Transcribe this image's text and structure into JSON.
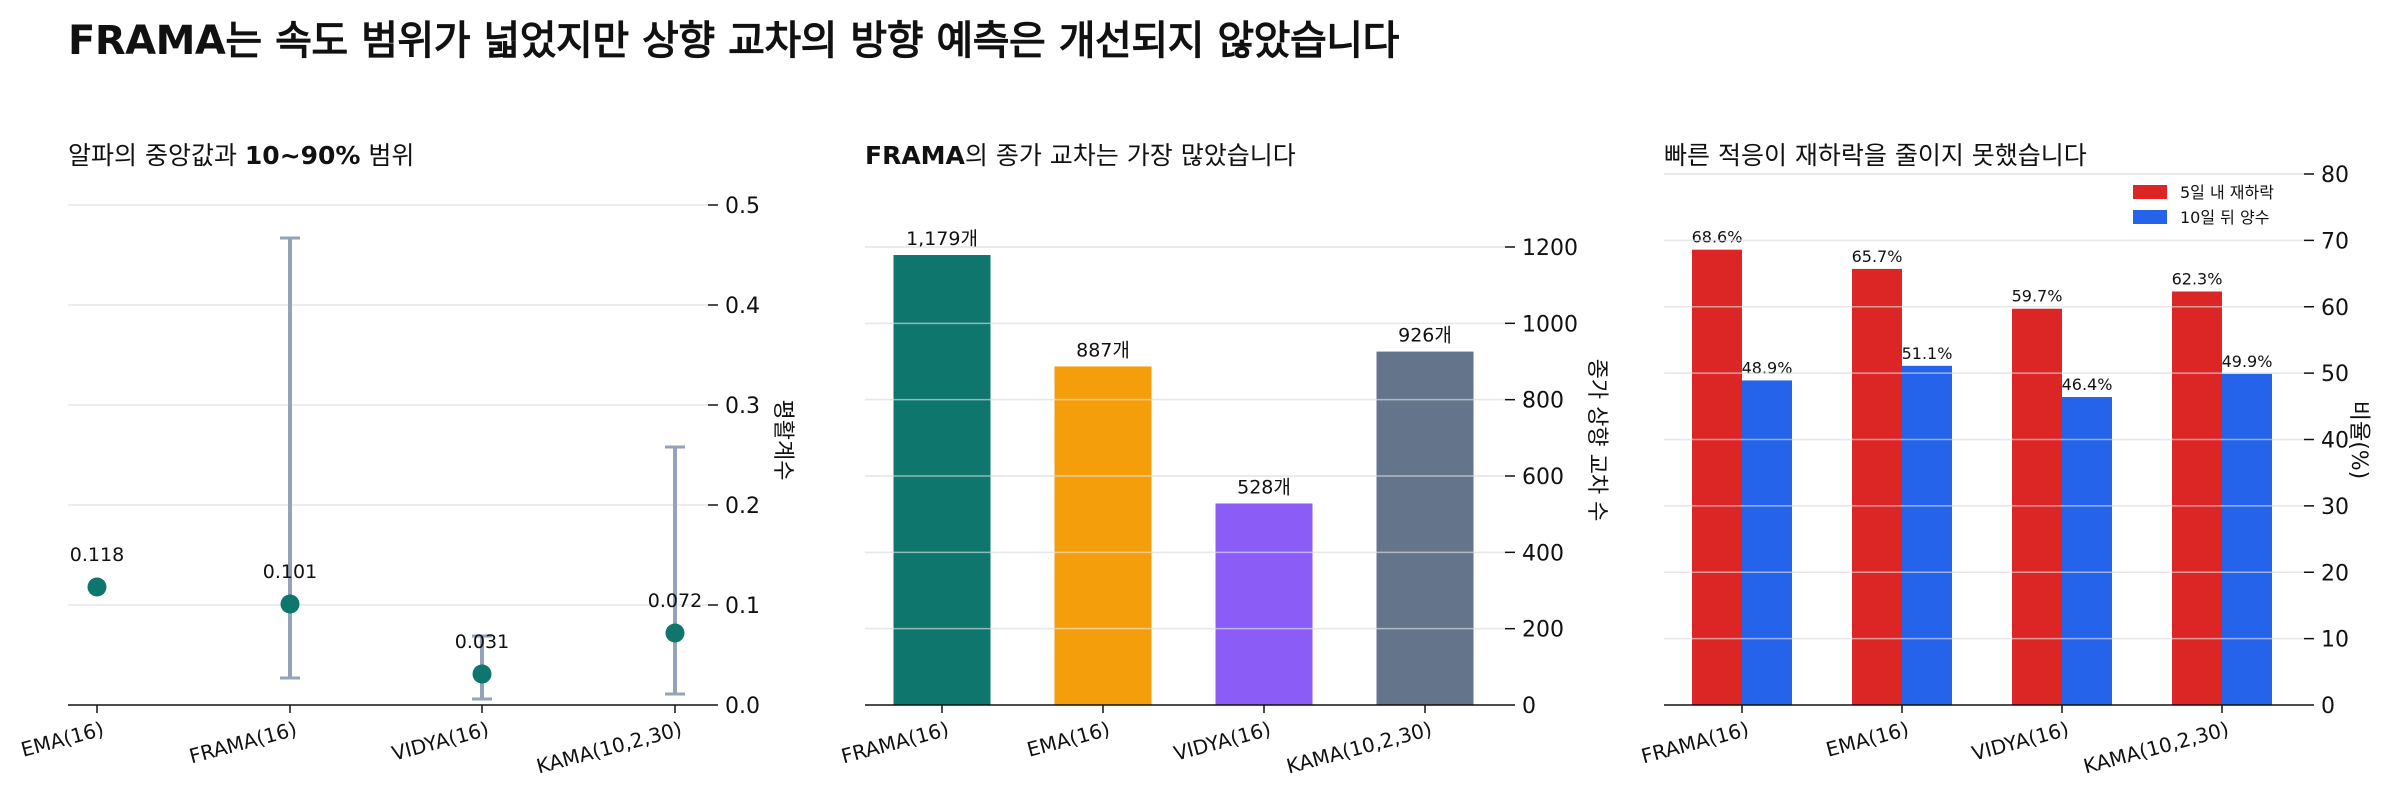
{
  "title": "FRAMA는 속도 범위가 넓었지만 상향 교차의 방향 예측은 개선되지 않았습니다",
  "chart_data": [
    {
      "type": "scatter",
      "title_bold": "",
      "title_rest": "알파의 중앙값과 ",
      "title_bold2": "10~90%",
      "title_rest2": " 범위",
      "categories": [
        "EMA(16)",
        "FRAMA(16)",
        "VIDYA(16)",
        "KAMA(10,2,30)"
      ],
      "median": [
        0.118,
        0.101,
        0.031,
        0.072
      ],
      "low": [
        null,
        0.027,
        0.006,
        0.011
      ],
      "high": [
        null,
        0.467,
        0.069,
        0.258
      ],
      "point_labels": [
        "0.118",
        "0.101",
        "0.031",
        "0.072"
      ],
      "ylabel": "평활계수",
      "ylim": [
        0,
        0.5
      ],
      "yticks": [
        "0.0",
        "0.1",
        "0.2",
        "0.3",
        "0.4",
        "0.5"
      ],
      "point_color": "#0f766e",
      "whisker_color": "#94a3b8",
      "grid": true
    },
    {
      "type": "bar",
      "title_bold": "FRAMA",
      "title_rest": "의 종가 교차는 가장 많았습니다",
      "categories": [
        "FRAMA(16)",
        "EMA(16)",
        "VIDYA(16)",
        "KAMA(10,2,30)"
      ],
      "values": [
        1179,
        887,
        528,
        926
      ],
      "value_labels": [
        "1,179개",
        "887개",
        "528개",
        "926개"
      ],
      "colors": [
        "#0f766e",
        "#f59e0b",
        "#8b5cf6",
        "#64748b"
      ],
      "ylabel": "종가 상향 교차 수",
      "ylim": [
        0,
        1300
      ],
      "yticks": [
        "0",
        "200",
        "400",
        "600",
        "800",
        "1000",
        "1200"
      ],
      "grid": true
    },
    {
      "type": "bar",
      "title_bold": "",
      "title_rest": "빠른 적응이 재하락을 줄이지 못했습니다",
      "categories": [
        "FRAMA(16)",
        "EMA(16)",
        "VIDYA(16)",
        "KAMA(10,2,30)"
      ],
      "series": [
        {
          "name": "5일 내 재하락",
          "values": [
            68.6,
            65.7,
            59.7,
            62.3
          ],
          "labels": [
            "68.6%",
            "65.7%",
            "59.7%",
            "62.3%"
          ],
          "color": "#dc2626"
        },
        {
          "name": "10일 뒤 양수",
          "values": [
            48.9,
            51.1,
            46.4,
            49.9
          ],
          "labels": [
            "48.9%",
            "51.1%",
            "46.4%",
            "49.9%"
          ],
          "color": "#2563eb"
        }
      ],
      "ylabel": "비율(%)",
      "ylim": [
        0,
        80
      ],
      "yticks": [
        "0",
        "10",
        "20",
        "30",
        "40",
        "50",
        "60",
        "70",
        "80"
      ],
      "legend": "top-right",
      "grid": true
    }
  ]
}
